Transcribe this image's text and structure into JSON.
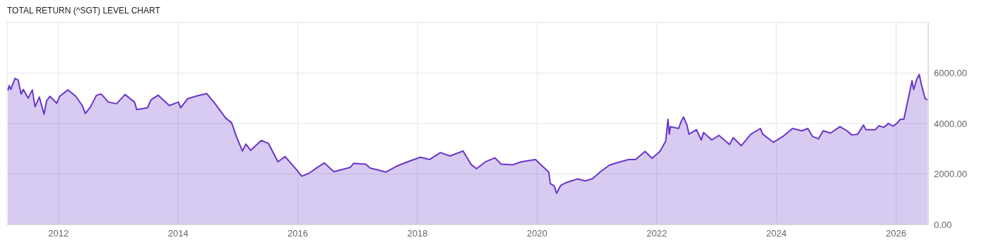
{
  "chart_data": {
    "type": "area",
    "title": "TOTAL RETURN (^SGT) LEVEL CHART",
    "x": [
      "2011-02-26",
      "2011-03-06",
      "2011-03-16",
      "2011-04-10",
      "2011-04-29",
      "2011-05-18",
      "2011-05-31",
      "2011-06-30",
      "2011-07-25",
      "2011-08-11",
      "2011-09-06",
      "2011-10-05",
      "2011-10-20",
      "2011-11-10",
      "2011-12-21",
      "2012-01-08",
      "2012-02-27",
      "2012-04-16",
      "2012-05-25",
      "2012-06-13",
      "2012-07-15",
      "2012-08-20",
      "2012-09-18",
      "2012-10-31",
      "2012-12-21",
      "2013-02-10",
      "2013-04-09",
      "2013-04-23",
      "2013-06-27",
      "2013-07-19",
      "2013-08-31",
      "2013-11-07",
      "2014-01-02",
      "2014-01-16",
      "2014-02-28",
      "2014-04-27",
      "2014-06-24",
      "2014-08-14",
      "2014-10-18",
      "2014-11-23",
      "2014-12-22",
      "2015-01-28",
      "2015-02-18",
      "2015-03-19",
      "2015-05-23",
      "2015-07-06",
      "2015-09-02",
      "2015-10-15",
      "2015-12-27",
      "2016-01-25",
      "2016-03-09",
      "2016-04-28",
      "2016-06-11",
      "2016-08-08",
      "2016-11-15",
      "2016-12-07",
      "2017-02-18",
      "2017-03-19",
      "2017-05-01",
      "2017-06-21",
      "2017-09-02",
      "2017-11-13",
      "2018-01-18",
      "2018-03-16",
      "2018-05-21",
      "2018-07-18",
      "2018-10-06",
      "2018-11-26",
      "2018-12-27",
      "2019-02-20",
      "2019-04-19",
      "2019-05-26",
      "2019-08-06",
      "2019-09-26",
      "2019-12-22",
      "2020-02-04",
      "2020-03-12",
      "2020-03-22",
      "2020-04-14",
      "2020-04-29",
      "2020-05-24",
      "2020-06-29",
      "2020-09-02",
      "2020-10-23",
      "2020-12-05",
      "2021-01-19",
      "2021-03-17",
      "2021-04-30",
      "2021-07-12",
      "2021-08-24",
      "2021-10-21",
      "2021-12-03",
      "2022-01-20",
      "2022-02-24",
      "2022-03-10",
      "2022-03-18",
      "2022-03-25",
      "2022-05-14",
      "2022-05-29",
      "2022-06-13",
      "2022-07-04",
      "2022-07-16",
      "2022-08-31",
      "2022-09-29",
      "2022-10-13",
      "2022-12-03",
      "2023-01-15",
      "2023-03-21",
      "2023-04-12",
      "2023-06-01",
      "2023-07-29",
      "2023-09-25",
      "2023-10-10",
      "2023-12-13",
      "2024-02-09",
      "2024-04-08",
      "2024-06-05",
      "2024-07-11",
      "2024-08-09",
      "2024-09-14",
      "2024-10-13",
      "2024-11-26",
      "2025-01-23",
      "2025-03-07",
      "2025-04-05",
      "2025-05-11",
      "2025-06-16",
      "2025-06-30",
      "2025-08-27",
      "2025-09-18",
      "2025-10-17",
      "2025-11-15",
      "2025-12-13",
      "2026-01-05",
      "2026-01-26",
      "2026-02-17",
      "2026-03-25",
      "2026-04-08",
      "2026-04-18",
      "2026-05-07",
      "2026-05-22",
      "2026-06-05",
      "2026-06-27",
      "2026-07-11"
    ],
    "series": [
      {
        "color": "#6a35c9",
        "values": [
          5305,
          5506,
          5350,
          5788,
          5733,
          5169,
          5350,
          5005,
          5333,
          4668,
          5050,
          4368,
          4896,
          5078,
          4805,
          5078,
          5333,
          5078,
          4714,
          4395,
          4668,
          5123,
          5169,
          4850,
          4787,
          5151,
          4850,
          4550,
          4623,
          4941,
          5123,
          4714,
          4850,
          4623,
          4987,
          5096,
          5187,
          4787,
          4213,
          4031,
          3485,
          2912,
          3185,
          2939,
          3331,
          3212,
          2484,
          2694,
          2148,
          1911,
          2029,
          2257,
          2439,
          2093,
          2257,
          2421,
          2393,
          2230,
          2166,
          2075,
          2330,
          2512,
          2666,
          2575,
          2848,
          2712,
          2912,
          2366,
          2211,
          2484,
          2639,
          2393,
          2366,
          2484,
          2575,
          2302,
          2075,
          1620,
          1529,
          1238,
          1547,
          1665,
          1802,
          1729,
          1820,
          2075,
          2348,
          2439,
          2575,
          2575,
          2894,
          2621,
          2894,
          3303,
          4168,
          3576,
          3877,
          3804,
          4077,
          4259,
          3940,
          3576,
          3758,
          3349,
          3640,
          3349,
          3531,
          3167,
          3440,
          3121,
          3576,
          3804,
          3576,
          3258,
          3485,
          3804,
          3713,
          3804,
          3485,
          3394,
          3713,
          3622,
          3877,
          3713,
          3549,
          3576,
          3940,
          3758,
          3758,
          3913,
          3849,
          4004,
          3895,
          4004,
          4168,
          4168,
          5260,
          5697,
          5351,
          5760,
          5942,
          5533,
          4987,
          4941
        ]
      }
    ],
    "xlim": [
      "2011-02-21",
      "2026-07-16"
    ],
    "xticks": [
      "2012",
      "2014",
      "2016",
      "2018",
      "2020",
      "2022",
      "2024",
      "2026"
    ],
    "ylim": [
      0,
      8000
    ],
    "yticks": [
      {
        "value": 0,
        "label": "0.00"
      },
      {
        "value": 2000,
        "label": "2000.00"
      },
      {
        "value": 4000,
        "label": "4000.00"
      },
      {
        "value": 6000,
        "label": "6000.00"
      }
    ],
    "grid": true,
    "legend": false,
    "marker": "none",
    "line_style": "solid"
  }
}
